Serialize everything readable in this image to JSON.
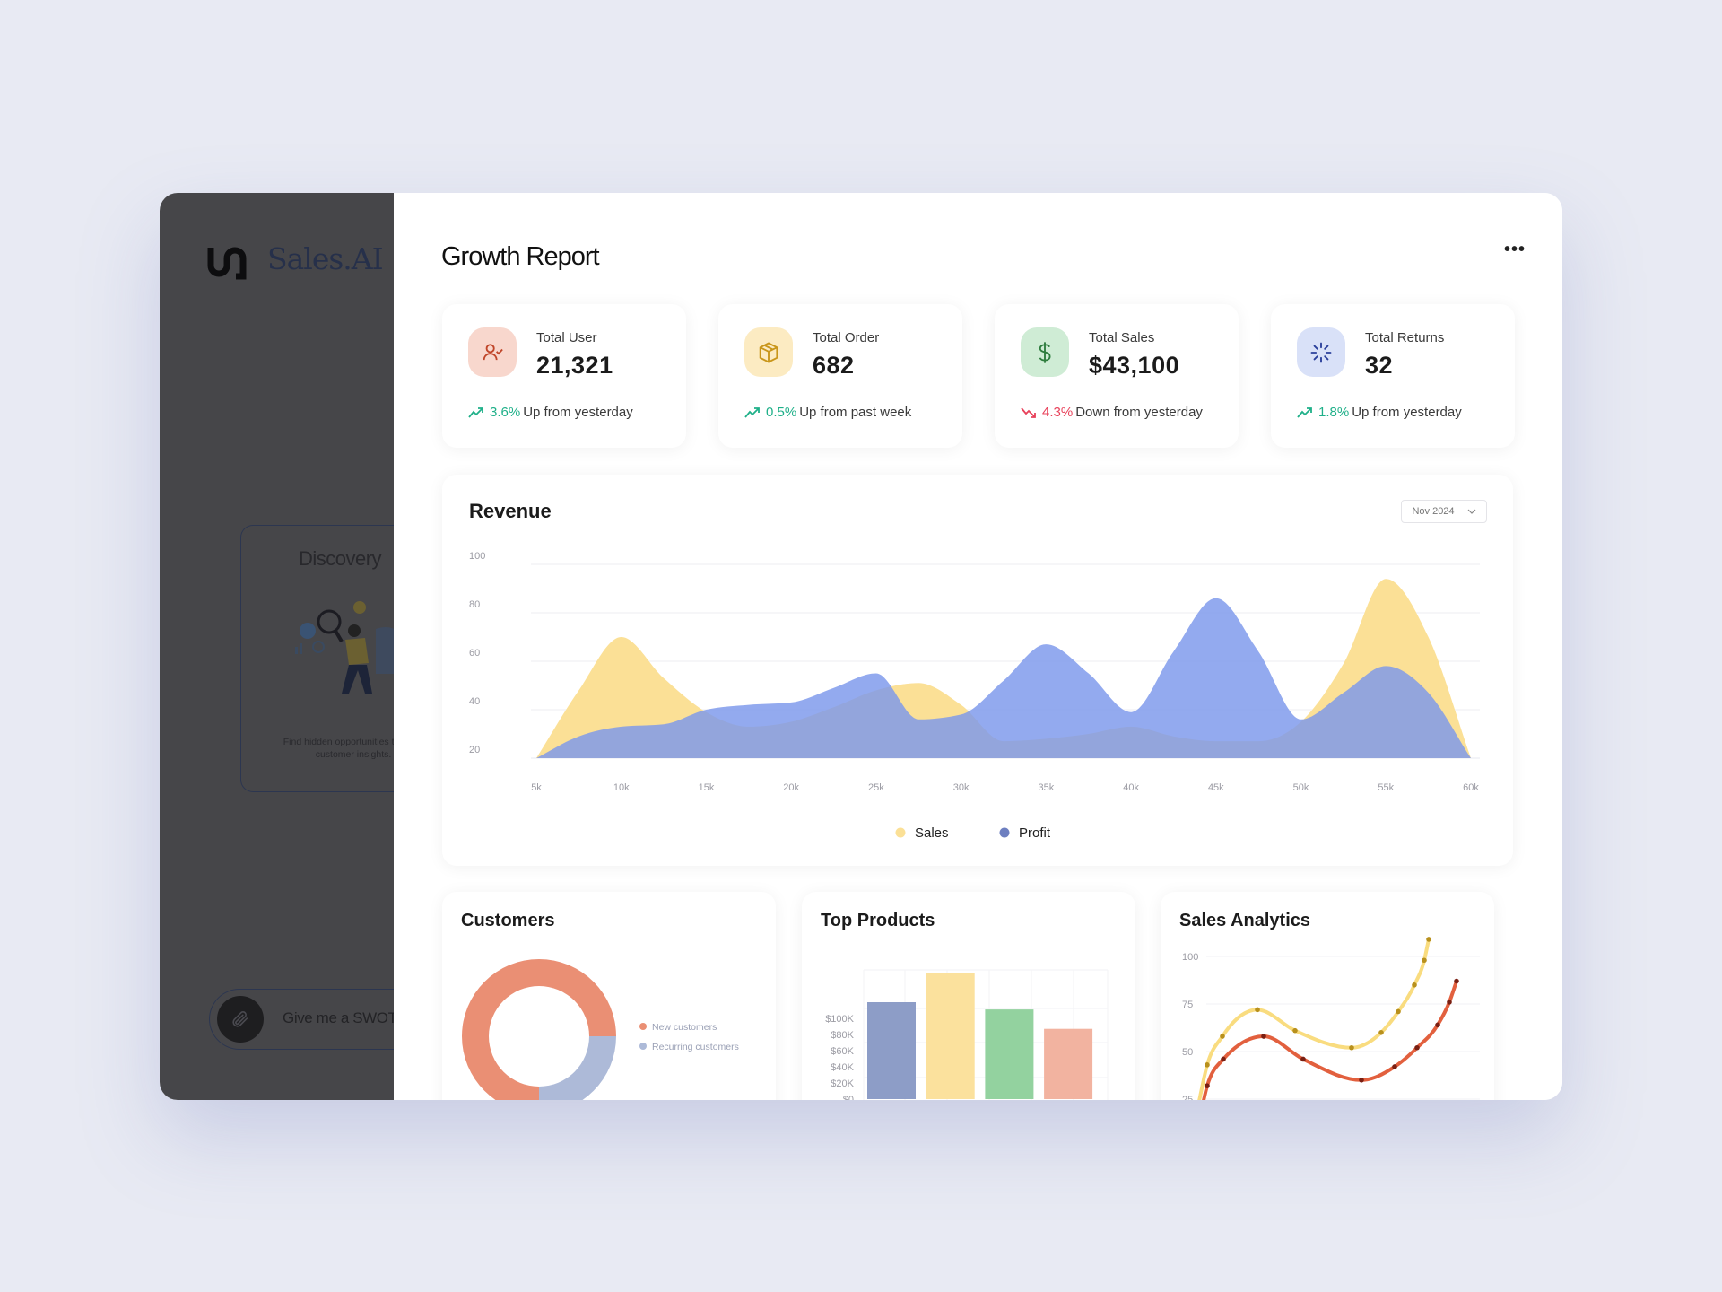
{
  "sidebar": {
    "brand": "Sales.AI",
    "discovery": {
      "title": "Discovery",
      "description": "Find hidden opportunities through customer insights."
    },
    "prompt": {
      "text": "Give me a SWOT"
    }
  },
  "header": {
    "title": "Growth Report",
    "more_label": "•••"
  },
  "stats": [
    {
      "label": "Total User",
      "value": "21,321",
      "change": "3.6%",
      "note": "Up from yesterday",
      "direction": "up",
      "icon": "user-check-icon",
      "icon_bg": "#f8d7cd",
      "icon_color": "#c0462a"
    },
    {
      "label": "Total Order",
      "value": "682",
      "change": "0.5%",
      "note": "Up from past week",
      "direction": "up",
      "icon": "box-icon",
      "icon_bg": "#fcebc2",
      "icon_color": "#c9961a"
    },
    {
      "label": "Total Sales",
      "value": "$43,100",
      "change": "4.3%",
      "note": "Down from yesterday",
      "direction": "down",
      "icon": "dollar-icon",
      "icon_bg": "#cfecd5",
      "icon_color": "#2e7d3e"
    },
    {
      "label": "Total Returns",
      "value": "32",
      "change": "1.8%",
      "note": "Up from yesterday",
      "direction": "up",
      "icon": "loader-icon",
      "icon_bg": "#d9e1f8",
      "icon_color": "#2a3f9b"
    }
  ],
  "colors": {
    "up": "#1fb089",
    "down": "#e8415a"
  },
  "revenue": {
    "title": "Revenue",
    "period": "Nov 2024"
  },
  "customers": {
    "title": "Customers"
  },
  "top_products": {
    "title": "Top Products"
  },
  "sales_analytics": {
    "title": "Sales Analytics"
  },
  "chart_data": [
    {
      "type": "area",
      "title": "Revenue",
      "x": [
        5,
        7.5,
        10,
        12.5,
        15,
        17.5,
        20,
        22.5,
        25,
        27.5,
        30,
        32.5,
        35,
        37.5,
        40,
        42.5,
        45,
        47.5,
        50,
        52.5,
        55,
        57.5,
        60
      ],
      "x_ticks": [
        "5k",
        "10k",
        "15k",
        "20k",
        "25k",
        "30k",
        "35k",
        "40k",
        "45k",
        "50k",
        "55k",
        "60k"
      ],
      "y_ticks": [
        100,
        80,
        60,
        40,
        20
      ],
      "ylim": [
        20,
        100
      ],
      "grid": true,
      "legend": "bottom",
      "series": [
        {
          "name": "Sales",
          "color": "#fbe096",
          "values": [
            20,
            48,
            70,
            53,
            39,
            33,
            35,
            41,
            48,
            51,
            42,
            27,
            28,
            30,
            33,
            29,
            27,
            27,
            35,
            59,
            94,
            70,
            20
          ]
        },
        {
          "name": "Profit",
          "color": "#7b97ec",
          "values": [
            20,
            29,
            33,
            34,
            40,
            42,
            43,
            49,
            55,
            36,
            38,
            52,
            67,
            55,
            39,
            64,
            86,
            64,
            36,
            47,
            58,
            47,
            20
          ]
        }
      ]
    },
    {
      "type": "pie",
      "title": "Customers",
      "donut": true,
      "slices": [
        {
          "name": "New customers",
          "value": 75,
          "color": "#ea8f74"
        },
        {
          "name": "Recurring customers",
          "value": 25,
          "color": "#adbad8"
        }
      ],
      "legend": "right"
    },
    {
      "type": "bar",
      "title": "Top Products",
      "y_ticks": [
        "$100K",
        "$80K",
        "$60K",
        "$40K",
        "$20K",
        "$0"
      ],
      "y_tick_values": [
        100,
        80,
        60,
        40,
        20,
        0
      ],
      "values": [
        120,
        156,
        111,
        87
      ],
      "colors": [
        "#8d9dc7",
        "#fbe19d",
        "#93d29f",
        "#f2b3a0"
      ],
      "grid": true
    },
    {
      "type": "line",
      "title": "Sales Analytics",
      "y_ticks": [
        100,
        75,
        50,
        25
      ],
      "grid": true,
      "series": [
        {
          "color": "#f9dc7f",
          "dot_color": "#b8901c",
          "values": [
            43,
            58,
            72,
            61,
            52,
            60,
            71,
            85,
            98,
            109
          ]
        },
        {
          "color": "#e2603e",
          "dot_color": "#7a1f12",
          "values": [
            32,
            46,
            58,
            46,
            35,
            42,
            52,
            64,
            76,
            87
          ]
        }
      ]
    }
  ]
}
